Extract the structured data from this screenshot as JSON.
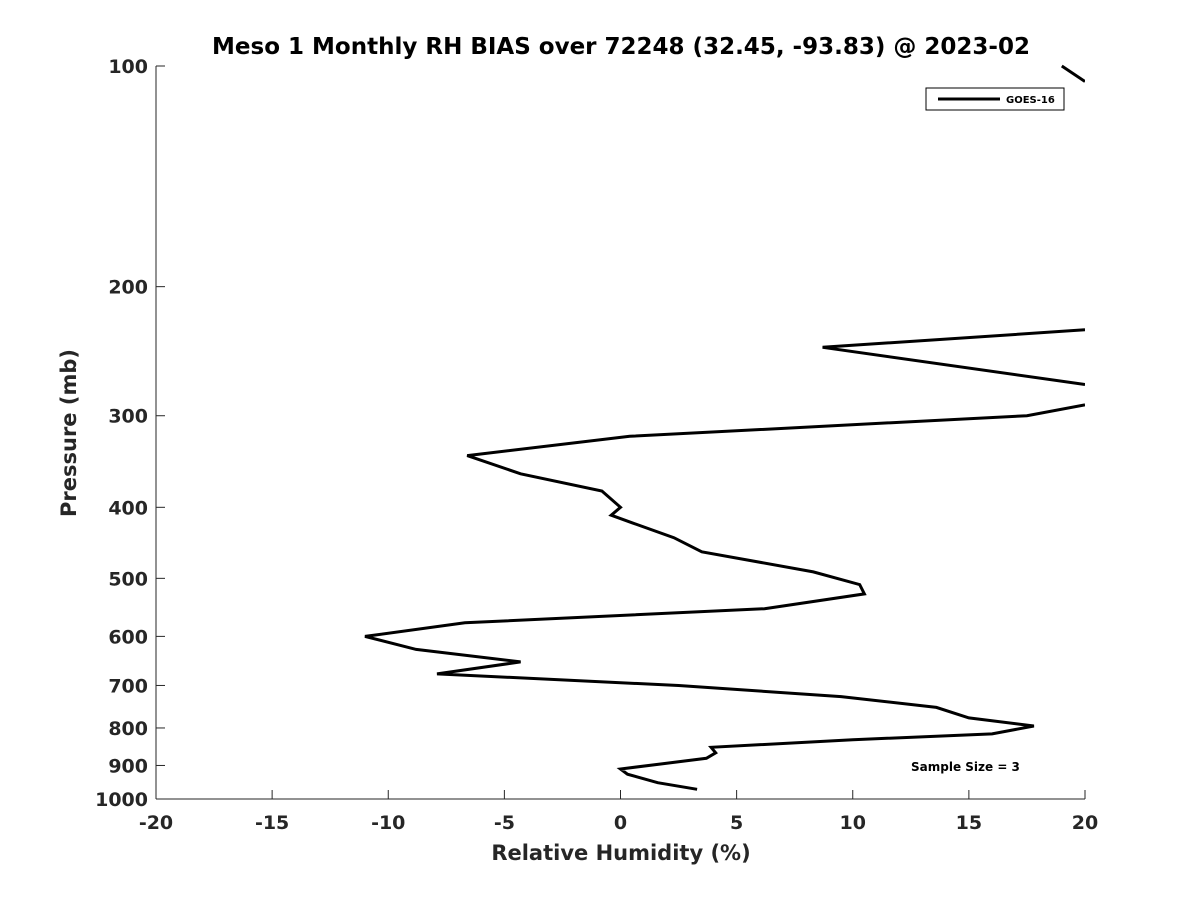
{
  "chart_data": {
    "type": "line",
    "title": "Meso 1 Monthly RH BIAS over 72248 (32.45, -93.83) @ 2023-02",
    "xlabel": "Relative Humidity (%)",
    "ylabel": "Pressure (mb)",
    "xlim": [
      -20,
      20
    ],
    "ylim": [
      100,
      1000
    ],
    "y_scale": "log",
    "y_reversed": true,
    "xticks": [
      -20,
      -15,
      -10,
      -5,
      0,
      5,
      10,
      15,
      20
    ],
    "yticks": [
      100,
      200,
      300,
      400,
      500,
      600,
      700,
      800,
      900,
      1000
    ],
    "grid": false,
    "legend_position": "top-right",
    "annotation": "Sample Size = 3",
    "series": [
      {
        "name": "GOES-16",
        "color": "#000000",
        "points": [
          [
            3.3,
            970
          ],
          [
            1.6,
            950
          ],
          [
            0.3,
            925
          ],
          [
            0.0,
            910
          ],
          [
            3.7,
            880
          ],
          [
            4.1,
            865
          ],
          [
            3.9,
            850
          ],
          [
            10.0,
            830
          ],
          [
            16.0,
            815
          ],
          [
            17.8,
            795
          ],
          [
            15.0,
            775
          ],
          [
            13.6,
            750
          ],
          [
            9.5,
            725
          ],
          [
            2.5,
            700
          ],
          [
            -7.9,
            675
          ],
          [
            -4.3,
            650
          ],
          [
            -8.8,
            625
          ],
          [
            -11.0,
            600
          ],
          [
            -6.7,
            575
          ],
          [
            6.2,
            550
          ],
          [
            10.5,
            525
          ],
          [
            10.3,
            510
          ],
          [
            8.3,
            490
          ],
          [
            3.5,
            460
          ],
          [
            2.3,
            440
          ],
          [
            0.5,
            420
          ],
          [
            -0.4,
            410
          ],
          [
            0.0,
            400
          ],
          [
            -0.8,
            380
          ],
          [
            -4.3,
            360
          ],
          [
            -6.6,
            340
          ],
          [
            0.4,
            320
          ],
          [
            17.5,
            300
          ],
          [
            20.0,
            290
          ]
        ]
      },
      {
        "name": "GOES-16",
        "color": "#000000",
        "points": [
          [
            20.0,
            272
          ],
          [
            8.7,
            242
          ],
          [
            20.0,
            229
          ]
        ]
      },
      {
        "name": "GOES-16",
        "color": "#000000",
        "points": [
          [
            19.0,
            100
          ],
          [
            20.0,
            105
          ]
        ]
      }
    ]
  }
}
